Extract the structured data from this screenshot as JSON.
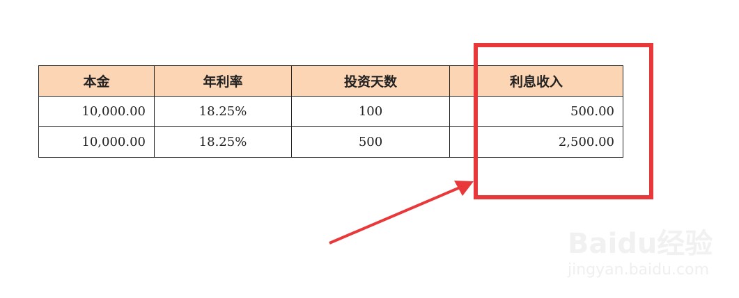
{
  "table": {
    "headers": [
      "本金",
      "年利率",
      "投资天数",
      "利息收入"
    ],
    "rows": [
      [
        "10,000.00",
        "18.25%",
        "100",
        "500.00"
      ],
      [
        "10,000.00",
        "18.25%",
        "500",
        "2,500.00"
      ]
    ]
  },
  "highlight_color": "#e8383a",
  "header_bg": "#fcd5b4",
  "watermark": {
    "logo": "Baidu经验",
    "url": "jingyan.baidu.com"
  }
}
